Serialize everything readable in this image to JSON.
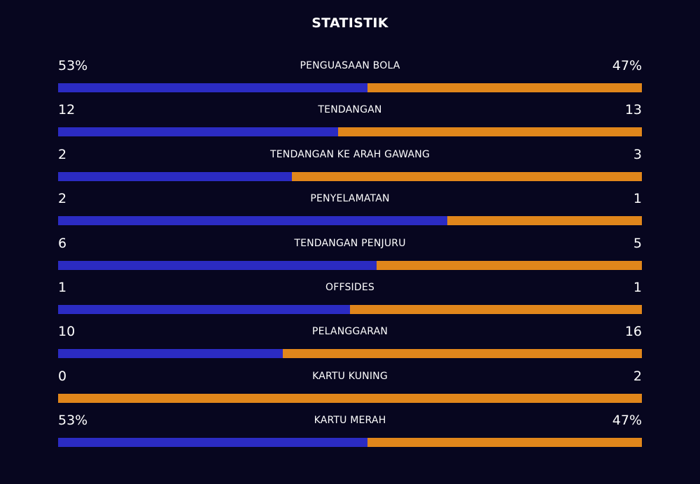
{
  "title": "STATISTIK",
  "colors": {
    "background": "#07061f",
    "home_bar": "#2b2bc2",
    "away_bar": "#e0861b"
  },
  "stats": [
    {
      "label": "PENGUASAAN BOLA",
      "home": "53%",
      "away": "47%",
      "home_share": 0.53
    },
    {
      "label": "TENDANGAN",
      "home": "12",
      "away": "13",
      "home_share": 0.48
    },
    {
      "label": "TENDANGAN KE ARAH GAWANG",
      "home": "2",
      "away": "3",
      "home_share": 0.4
    },
    {
      "label": "PENYELAMATAN",
      "home": "2",
      "away": "1",
      "home_share": 0.667
    },
    {
      "label": "TENDANGAN PENJURU",
      "home": "6",
      "away": "5",
      "home_share": 0.545
    },
    {
      "label": "OFFSIDES",
      "home": "1",
      "away": "1",
      "home_share": 0.5
    },
    {
      "label": "PELANGGARAN",
      "home": "10",
      "away": "16",
      "home_share": 0.385
    },
    {
      "label": "KARTU KUNING",
      "home": "0",
      "away": "2",
      "home_share": 0.0
    },
    {
      "label": "KARTU MERAH",
      "home": "53%",
      "away": "47%",
      "home_share": 0.53
    }
  ]
}
